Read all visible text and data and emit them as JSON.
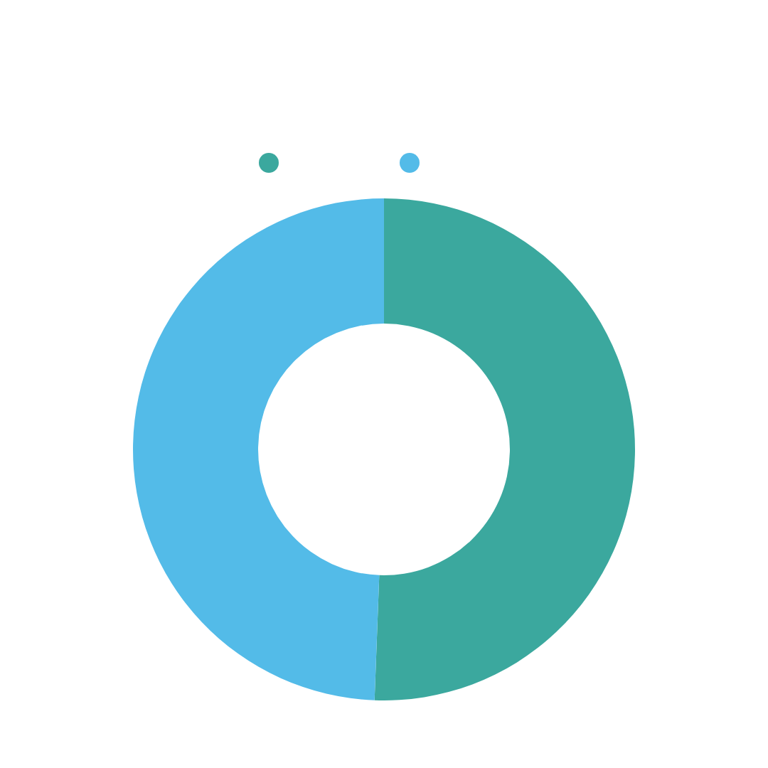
{
  "chart_data": {
    "type": "donut",
    "categories": [
      null,
      null
    ],
    "values": [
      50.6,
      49.4
    ],
    "colors": [
      "#3ba89e",
      "#53bbe8"
    ]
  }
}
